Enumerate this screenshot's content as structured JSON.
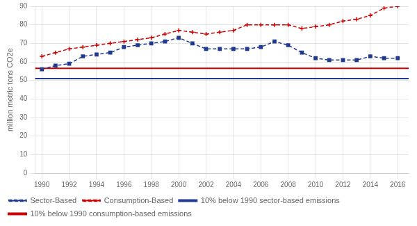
{
  "chart_data": {
    "type": "line",
    "ylabel": "million metric tons CO2e",
    "x": [
      1990,
      1991,
      1992,
      1993,
      1994,
      1995,
      1996,
      1997,
      1998,
      1999,
      2000,
      2001,
      2002,
      2003,
      2004,
      2005,
      2006,
      2007,
      2008,
      2009,
      2010,
      2011,
      2012,
      2013,
      2014,
      2015,
      2016
    ],
    "series": [
      {
        "name": "Sector-Based",
        "color": "#1F3A8F",
        "marker": "square",
        "line_style": "dashed",
        "values": [
          56,
          58,
          59,
          63,
          64,
          65,
          68,
          69,
          70,
          71,
          73,
          70,
          67,
          67,
          67,
          67,
          68,
          71,
          69,
          65,
          62,
          61,
          61,
          61,
          63,
          62,
          62
        ]
      },
      {
        "name": "Consumption-Based",
        "color": "#CC0000",
        "marker": "plus",
        "line_style": "dashed",
        "values": [
          63,
          65,
          67,
          68,
          69,
          70,
          71,
          72,
          73,
          75,
          77,
          76,
          75,
          76,
          77,
          80,
          80,
          80,
          80,
          78,
          79,
          80,
          82,
          83,
          85,
          89,
          90
        ]
      },
      {
        "name": "10% below 1990 sector-based emissions",
        "color": "#1F3A8F",
        "type": "hline",
        "line_style": "solid",
        "y": 51
      },
      {
        "name": "10% below 1990 consumption-based emissions",
        "color": "#CC0000",
        "type": "hline",
        "line_style": "solid",
        "y": 56.5
      }
    ],
    "xlim": [
      1989.5,
      2016.8
    ],
    "xticks": [
      1990,
      1992,
      1994,
      1996,
      1998,
      2000,
      2002,
      2004,
      2006,
      2008,
      2010,
      2012,
      2014,
      2016
    ],
    "ylim": [
      0,
      90
    ],
    "yticks": [
      0,
      10,
      20,
      30,
      40,
      50,
      60,
      70,
      80,
      90
    ],
    "grid": true,
    "legend": "bottom"
  }
}
